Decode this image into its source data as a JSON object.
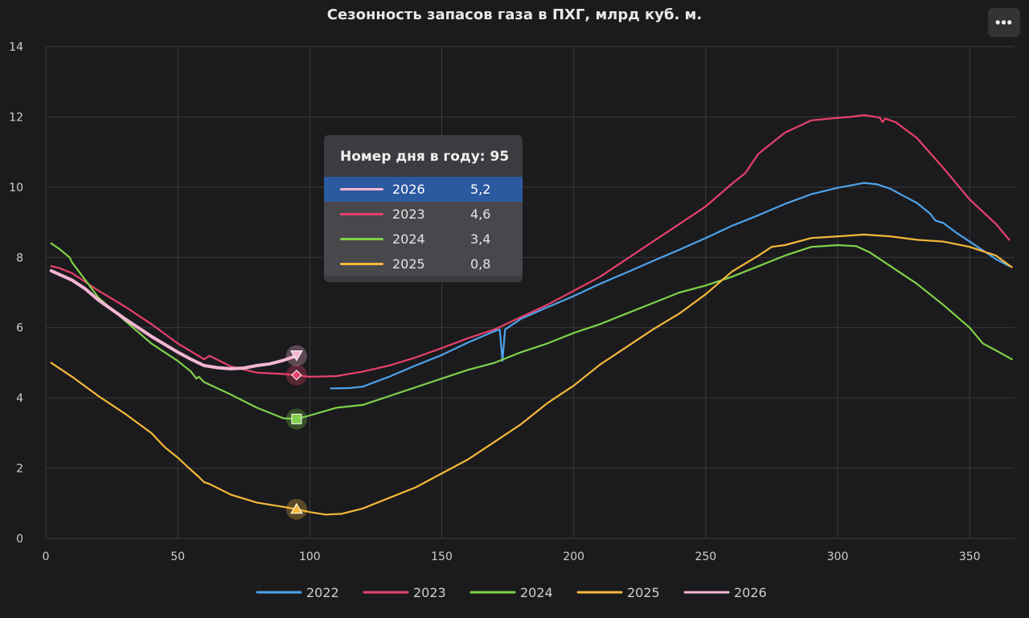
{
  "title": "Сезонность запасов газа в ПХГ, млрд куб. м.",
  "menu": {
    "icon": "ellipsis-icon",
    "label": "•••"
  },
  "tooltip": {
    "header": "Номер дня в году: 95",
    "rows": [
      {
        "year": "2026",
        "value": "5,2",
        "color": "#f4b6d4",
        "active": true
      },
      {
        "year": "2023",
        "value": "4,6",
        "color": "#e8416a"
      },
      {
        "year": "2024",
        "value": "3,4",
        "color": "#7fd14a"
      },
      {
        "year": "2025",
        "value": "0,8",
        "color": "#f5b83a"
      }
    ]
  },
  "chart_data": {
    "type": "line",
    "title": "Сезонность запасов газа в ПХГ, млрд куб. м.",
    "xlabel": "",
    "ylabel": "",
    "xlim": [
      0,
      367
    ],
    "ylim": [
      0,
      14
    ],
    "x_ticks": [
      0,
      50,
      100,
      150,
      200,
      250,
      300,
      350
    ],
    "y_ticks": [
      0,
      2,
      4,
      6,
      8,
      10,
      12,
      14
    ],
    "grid": true,
    "legend_position": "bottom",
    "highlight_day": 95,
    "series": [
      {
        "name": "2022",
        "color": "#4ea3ea",
        "marker": "none",
        "points": [
          [
            108,
            4.27
          ],
          [
            115,
            4.28
          ],
          [
            120,
            4.32
          ],
          [
            130,
            4.6
          ],
          [
            140,
            4.92
          ],
          [
            150,
            5.22
          ],
          [
            160,
            5.58
          ],
          [
            170,
            5.9
          ],
          [
            172,
            5.95
          ],
          [
            173,
            5.05
          ],
          [
            174,
            5.95
          ],
          [
            180,
            6.25
          ],
          [
            190,
            6.58
          ],
          [
            200,
            6.9
          ],
          [
            210,
            7.25
          ],
          [
            220,
            7.57
          ],
          [
            230,
            7.9
          ],
          [
            240,
            8.22
          ],
          [
            250,
            8.55
          ],
          [
            260,
            8.9
          ],
          [
            270,
            9.2
          ],
          [
            280,
            9.52
          ],
          [
            290,
            9.8
          ],
          [
            300,
            9.98
          ],
          [
            305,
            10.05
          ],
          [
            310,
            10.12
          ],
          [
            315,
            10.08
          ],
          [
            320,
            9.95
          ],
          [
            325,
            9.75
          ],
          [
            330,
            9.55
          ],
          [
            335,
            9.25
          ],
          [
            337,
            9.05
          ],
          [
            340,
            8.98
          ],
          [
            345,
            8.7
          ],
          [
            350,
            8.45
          ],
          [
            355,
            8.2
          ],
          [
            360,
            7.95
          ],
          [
            365,
            7.75
          ]
        ]
      },
      {
        "name": "2023",
        "color": "#e8416a",
        "marker": "diamond",
        "points": [
          [
            2,
            7.75
          ],
          [
            5,
            7.7
          ],
          [
            10,
            7.55
          ],
          [
            20,
            7.05
          ],
          [
            30,
            6.6
          ],
          [
            40,
            6.1
          ],
          [
            50,
            5.55
          ],
          [
            60,
            5.1
          ],
          [
            62,
            5.2
          ],
          [
            70,
            4.9
          ],
          [
            80,
            4.72
          ],
          [
            90,
            4.68
          ],
          [
            95,
            4.65
          ],
          [
            100,
            4.6
          ],
          [
            110,
            4.62
          ],
          [
            120,
            4.75
          ],
          [
            130,
            4.92
          ],
          [
            140,
            5.15
          ],
          [
            150,
            5.42
          ],
          [
            160,
            5.7
          ],
          [
            170,
            5.95
          ],
          [
            180,
            6.3
          ],
          [
            190,
            6.65
          ],
          [
            200,
            7.05
          ],
          [
            210,
            7.45
          ],
          [
            220,
            7.95
          ],
          [
            230,
            8.45
          ],
          [
            240,
            8.95
          ],
          [
            250,
            9.45
          ],
          [
            260,
            10.1
          ],
          [
            265,
            10.4
          ],
          [
            270,
            10.95
          ],
          [
            280,
            11.55
          ],
          [
            290,
            11.9
          ],
          [
            300,
            11.97
          ],
          [
            305,
            12.0
          ],
          [
            310,
            12.05
          ],
          [
            316,
            11.98
          ],
          [
            317,
            11.85
          ],
          [
            318,
            11.95
          ],
          [
            322,
            11.85
          ],
          [
            330,
            11.4
          ],
          [
            340,
            10.55
          ],
          [
            350,
            9.65
          ],
          [
            360,
            8.95
          ],
          [
            365,
            8.5
          ]
        ]
      },
      {
        "name": "2024",
        "color": "#7fd14a",
        "marker": "square",
        "points": [
          [
            2,
            8.4
          ],
          [
            5,
            8.25
          ],
          [
            9,
            8.0
          ],
          [
            10,
            7.85
          ],
          [
            15,
            7.35
          ],
          [
            20,
            6.85
          ],
          [
            30,
            6.2
          ],
          [
            40,
            5.55
          ],
          [
            50,
            5.05
          ],
          [
            55,
            4.75
          ],
          [
            57,
            4.55
          ],
          [
            58,
            4.6
          ],
          [
            60,
            4.45
          ],
          [
            70,
            4.1
          ],
          [
            80,
            3.72
          ],
          [
            90,
            3.42
          ],
          [
            95,
            3.4
          ],
          [
            100,
            3.5
          ],
          [
            110,
            3.72
          ],
          [
            120,
            3.8
          ],
          [
            130,
            4.05
          ],
          [
            140,
            4.3
          ],
          [
            150,
            4.55
          ],
          [
            160,
            4.8
          ],
          [
            170,
            5.0
          ],
          [
            180,
            5.3
          ],
          [
            190,
            5.55
          ],
          [
            200,
            5.85
          ],
          [
            210,
            6.1
          ],
          [
            220,
            6.4
          ],
          [
            230,
            6.7
          ],
          [
            240,
            7.0
          ],
          [
            250,
            7.2
          ],
          [
            260,
            7.45
          ],
          [
            270,
            7.75
          ],
          [
            280,
            8.05
          ],
          [
            290,
            8.3
          ],
          [
            300,
            8.35
          ],
          [
            307,
            8.32
          ],
          [
            312,
            8.15
          ],
          [
            320,
            7.75
          ],
          [
            330,
            7.25
          ],
          [
            340,
            6.65
          ],
          [
            350,
            6.0
          ],
          [
            355,
            5.55
          ],
          [
            360,
            5.35
          ],
          [
            366,
            5.1
          ]
        ]
      },
      {
        "name": "2025",
        "color": "#f5b83a",
        "marker": "triangle",
        "points": [
          [
            2,
            5.0
          ],
          [
            10,
            4.6
          ],
          [
            20,
            4.05
          ],
          [
            30,
            3.55
          ],
          [
            40,
            3.0
          ],
          [
            45,
            2.6
          ],
          [
            50,
            2.3
          ],
          [
            55,
            1.95
          ],
          [
            58,
            1.75
          ],
          [
            60,
            1.6
          ],
          [
            62,
            1.55
          ],
          [
            70,
            1.25
          ],
          [
            80,
            1.02
          ],
          [
            90,
            0.9
          ],
          [
            95,
            0.83
          ],
          [
            100,
            0.75
          ],
          [
            106,
            0.68
          ],
          [
            112,
            0.7
          ],
          [
            120,
            0.85
          ],
          [
            130,
            1.15
          ],
          [
            140,
            1.45
          ],
          [
            150,
            1.85
          ],
          [
            160,
            2.25
          ],
          [
            170,
            2.75
          ],
          [
            180,
            3.25
          ],
          [
            190,
            3.85
          ],
          [
            200,
            4.35
          ],
          [
            210,
            4.95
          ],
          [
            220,
            5.45
          ],
          [
            230,
            5.95
          ],
          [
            240,
            6.4
          ],
          [
            250,
            6.95
          ],
          [
            260,
            7.6
          ],
          [
            270,
            8.05
          ],
          [
            275,
            8.3
          ],
          [
            280,
            8.35
          ],
          [
            290,
            8.55
          ],
          [
            300,
            8.6
          ],
          [
            310,
            8.65
          ],
          [
            320,
            8.6
          ],
          [
            330,
            8.5
          ],
          [
            340,
            8.45
          ],
          [
            350,
            8.3
          ],
          [
            360,
            8.05
          ],
          [
            366,
            7.72
          ]
        ]
      },
      {
        "name": "2026",
        "color": "#f4b6d4",
        "marker": "arrow",
        "points": [
          [
            2,
            7.62
          ],
          [
            5,
            7.52
          ],
          [
            10,
            7.35
          ],
          [
            15,
            7.1
          ],
          [
            20,
            6.78
          ],
          [
            30,
            6.25
          ],
          [
            40,
            5.75
          ],
          [
            50,
            5.3
          ],
          [
            55,
            5.1
          ],
          [
            60,
            4.92
          ],
          [
            65,
            4.86
          ],
          [
            70,
            4.83
          ],
          [
            75,
            4.85
          ],
          [
            80,
            4.92
          ],
          [
            85,
            4.97
          ],
          [
            90,
            5.07
          ],
          [
            95,
            5.2
          ]
        ]
      }
    ]
  }
}
